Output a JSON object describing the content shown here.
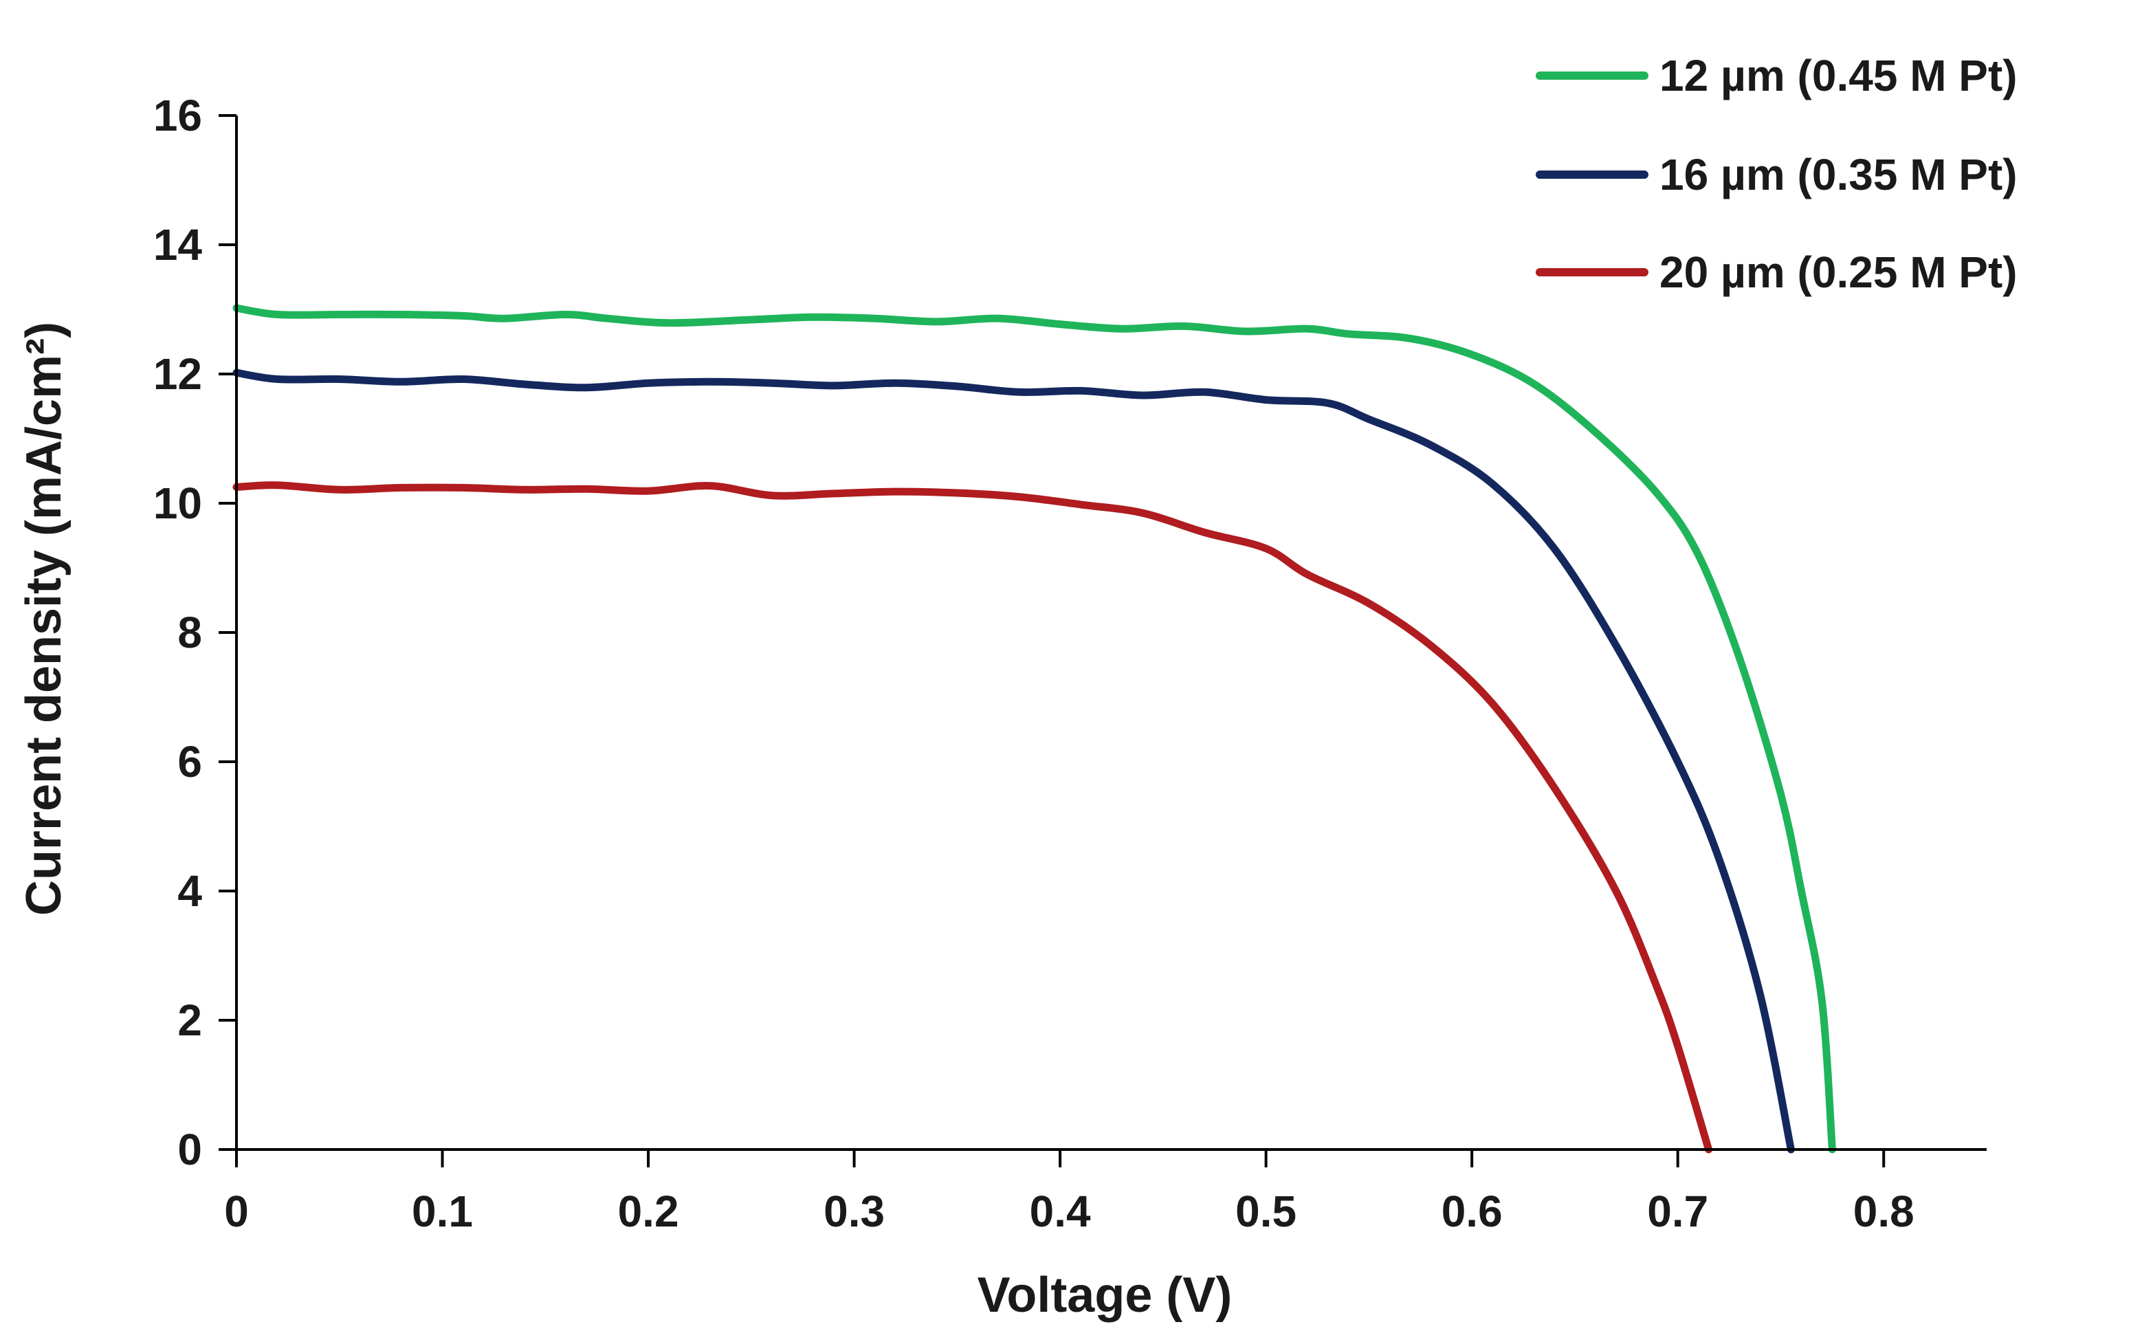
{
  "chart_data": {
    "type": "line",
    "title": "",
    "xlabel": "Voltage (V)",
    "ylabel": "Current density (mA/cm²)",
    "xlim": [
      0,
      0.85
    ],
    "ylim": [
      0,
      16
    ],
    "x_ticks": [
      0,
      0.1,
      0.2,
      0.3,
      0.4,
      0.5,
      0.6,
      0.7,
      0.8
    ],
    "x_tick_labels": [
      "0",
      "0.1",
      "0.2",
      "0.3",
      "0.4",
      "0.5",
      "0.6",
      "0.7",
      "0.8"
    ],
    "y_ticks": [
      0,
      2,
      4,
      6,
      8,
      10,
      12,
      14,
      16
    ],
    "y_tick_labels": [
      "0",
      "2",
      "4",
      "6",
      "8",
      "10",
      "12",
      "14",
      "16"
    ],
    "grid": false,
    "legend_position": "top-right",
    "series": [
      {
        "name": "12 µm (0.45 M Pt)",
        "color": "#1fb45a",
        "points": [
          [
            0,
            13.02
          ],
          [
            0.02,
            12.92
          ],
          [
            0.05,
            12.92
          ],
          [
            0.08,
            12.92
          ],
          [
            0.11,
            12.9
          ],
          [
            0.13,
            12.86
          ],
          [
            0.16,
            12.92
          ],
          [
            0.18,
            12.86
          ],
          [
            0.21,
            12.79
          ],
          [
            0.25,
            12.84
          ],
          [
            0.28,
            12.88
          ],
          [
            0.31,
            12.86
          ],
          [
            0.34,
            12.81
          ],
          [
            0.37,
            12.86
          ],
          [
            0.4,
            12.77
          ],
          [
            0.43,
            12.7
          ],
          [
            0.46,
            12.74
          ],
          [
            0.49,
            12.66
          ],
          [
            0.52,
            12.7
          ],
          [
            0.54,
            12.62
          ],
          [
            0.57,
            12.55
          ],
          [
            0.6,
            12.3
          ],
          [
            0.63,
            11.85
          ],
          [
            0.66,
            11.1
          ],
          [
            0.69,
            10.15
          ],
          [
            0.71,
            9.2
          ],
          [
            0.73,
            7.6
          ],
          [
            0.75,
            5.5
          ],
          [
            0.76,
            4.0
          ],
          [
            0.77,
            2.3
          ],
          [
            0.775,
            0
          ]
        ]
      },
      {
        "name": "16 µm (0.35 M Pt)",
        "color": "#14285e",
        "points": [
          [
            0,
            12.02
          ],
          [
            0.02,
            11.92
          ],
          [
            0.05,
            11.92
          ],
          [
            0.08,
            11.88
          ],
          [
            0.11,
            11.92
          ],
          [
            0.14,
            11.84
          ],
          [
            0.17,
            11.79
          ],
          [
            0.2,
            11.86
          ],
          [
            0.23,
            11.88
          ],
          [
            0.26,
            11.86
          ],
          [
            0.29,
            11.82
          ],
          [
            0.32,
            11.86
          ],
          [
            0.35,
            11.81
          ],
          [
            0.38,
            11.72
          ],
          [
            0.41,
            11.74
          ],
          [
            0.44,
            11.67
          ],
          [
            0.47,
            11.72
          ],
          [
            0.5,
            11.6
          ],
          [
            0.53,
            11.55
          ],
          [
            0.55,
            11.3
          ],
          [
            0.58,
            10.9
          ],
          [
            0.61,
            10.3
          ],
          [
            0.64,
            9.3
          ],
          [
            0.67,
            7.8
          ],
          [
            0.7,
            6.0
          ],
          [
            0.72,
            4.5
          ],
          [
            0.74,
            2.4
          ],
          [
            0.755,
            0
          ]
        ]
      },
      {
        "name": "20 µm (0.25 M Pt)",
        "color": "#b01c1f",
        "points": [
          [
            0,
            10.25
          ],
          [
            0.02,
            10.28
          ],
          [
            0.05,
            10.21
          ],
          [
            0.08,
            10.24
          ],
          [
            0.11,
            10.24
          ],
          [
            0.14,
            10.21
          ],
          [
            0.17,
            10.22
          ],
          [
            0.2,
            10.19
          ],
          [
            0.23,
            10.27
          ],
          [
            0.26,
            10.12
          ],
          [
            0.29,
            10.15
          ],
          [
            0.32,
            10.18
          ],
          [
            0.35,
            10.16
          ],
          [
            0.38,
            10.1
          ],
          [
            0.41,
            9.98
          ],
          [
            0.44,
            9.85
          ],
          [
            0.47,
            9.55
          ],
          [
            0.5,
            9.3
          ],
          [
            0.52,
            8.9
          ],
          [
            0.55,
            8.45
          ],
          [
            0.58,
            7.8
          ],
          [
            0.61,
            6.9
          ],
          [
            0.64,
            5.6
          ],
          [
            0.67,
            4.0
          ],
          [
            0.69,
            2.5
          ],
          [
            0.7,
            1.6
          ],
          [
            0.715,
            0
          ]
        ]
      }
    ]
  }
}
